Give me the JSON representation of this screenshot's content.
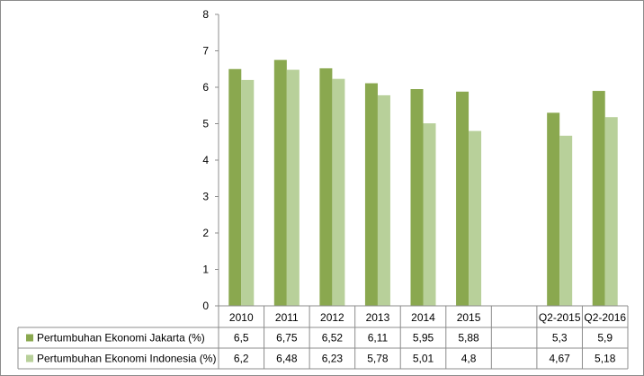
{
  "chart_data": {
    "type": "bar",
    "categories": [
      "2010",
      "2011",
      "2012",
      "2013",
      "2014",
      "2015",
      "",
      "Q2-2015",
      "Q2-2016"
    ],
    "ylim": [
      0,
      8
    ],
    "yticks": [
      "0",
      "1",
      "2",
      "3",
      "4",
      "5",
      "6",
      "7",
      "8"
    ],
    "grid": false,
    "legend": "table-below",
    "series": [
      {
        "name": "Pertumbuhan Ekonomi Jakarta (%)",
        "color": "#8aa84f",
        "values": [
          6.5,
          6.75,
          6.52,
          6.11,
          5.95,
          5.88,
          null,
          5.3,
          5.9
        ],
        "labels": [
          "6,5",
          "6,75",
          "6,52",
          "6,11",
          "5,95",
          "5,88",
          "",
          "5,3",
          "5,9"
        ]
      },
      {
        "name": "Pertumbuhan Ekonomi Indonesia (%)",
        "color": "#b8d09a",
        "values": [
          6.2,
          6.48,
          6.23,
          5.78,
          5.01,
          4.8,
          null,
          4.67,
          5.18
        ],
        "labels": [
          "6,2",
          "6,48",
          "6,23",
          "5,78",
          "5,01",
          "4,8",
          "",
          "4,67",
          "5,18"
        ]
      }
    ]
  }
}
